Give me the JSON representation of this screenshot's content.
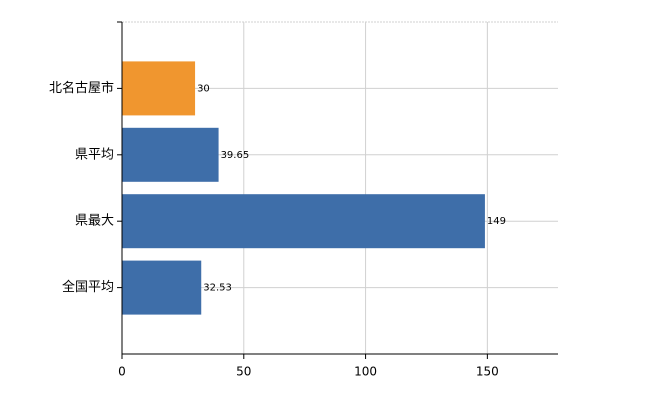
{
  "chart_data": {
    "type": "bar",
    "orientation": "horizontal",
    "categories": [
      "北名古屋市",
      "県平均",
      "県最大",
      "全国平均"
    ],
    "values": [
      30,
      39.65,
      149,
      32.53
    ],
    "colors": [
      "#f0962f",
      "#3e6ea9",
      "#3e6ea9",
      "#3e6ea9"
    ],
    "xlim": [
      0,
      179
    ],
    "xticks": [
      0,
      50,
      100,
      150
    ],
    "grid": true
  }
}
